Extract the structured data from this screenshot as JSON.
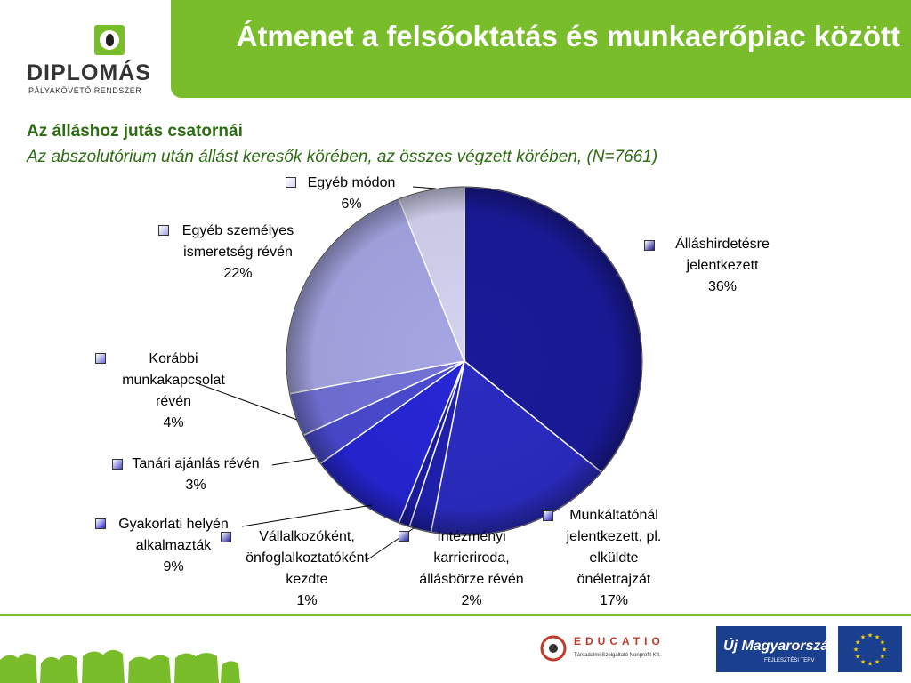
{
  "header": {
    "title": "Átmenet a felsőoktatás és munkaerőpiac között"
  },
  "logo": {
    "word": "DIPLOMÁS",
    "sub": "PÁLYAKÖVETŐ  RENDSZER"
  },
  "subtitle": {
    "line1": "Az álláshoz jutás csatornái",
    "line2": "Az abszolutórium után állást keresők körében, az összes végzett körében, (N=7661)"
  },
  "chart_data": {
    "type": "pie",
    "start_angle_deg": 0,
    "direction": "clockwise",
    "slices": [
      {
        "name": "Álláshirdetésre jelentkezett",
        "label_lines": [
          "Álláshirdetésre",
          "jelentkezett"
        ],
        "value": 36,
        "pct": "36%",
        "color": "#1a1a9a"
      },
      {
        "name": "Munkáltatónál jelentkezett, pl. elküldte önéletrajzát",
        "label_lines": [
          "Munkáltatónál",
          "jelentkezett, pl.",
          "elküldte",
          "önéletrajzát"
        ],
        "value": 17,
        "pct": "17%",
        "color": "#2b2bc2"
      },
      {
        "name": "Intézményi karrieriroda, állásbörze révén",
        "label_lines": [
          "Intézményi",
          "karrieriroda,",
          "állásbörze révén"
        ],
        "value": 2,
        "pct": "2%",
        "color": "#2020b0"
      },
      {
        "name": "Vállalkozóként, önfoglalkoztatóként kezdte",
        "label_lines": [
          "Vállalkozóként,",
          "önfoglalkoztatóként",
          "kezdte"
        ],
        "value": 1,
        "pct": "1%",
        "color": "#1c1ca6"
      },
      {
        "name": "Gyakorlati helyén alkalmazták",
        "label_lines": [
          "Gyakorlati helyén",
          "alkalmazták"
        ],
        "value": 9,
        "pct": "9%",
        "color": "#2626d6"
      },
      {
        "name": "Tanári ajánlás révén",
        "label_lines": [
          "Tanári ajánlás révén"
        ],
        "value": 3,
        "pct": "3%",
        "color": "#4a4ad0"
      },
      {
        "name": "Korábbi munkakapcsolat révén",
        "label_lines": [
          "Korábbi",
          "munkakapcsolat",
          "révén"
        ],
        "value": 4,
        "pct": "4%",
        "color": "#7272d8"
      },
      {
        "name": "Egyéb személyes ismeretség révén",
        "label_lines": [
          "Egyéb személyes",
          "ismeretség révén"
        ],
        "value": 22,
        "pct": "22%",
        "color": "#a6a6e4"
      },
      {
        "name": "Egyéb módon",
        "label_lines": [
          "Egyéb módon"
        ],
        "value": 6,
        "pct": "6%",
        "color": "#d4d4f2"
      }
    ]
  },
  "footer": {
    "educatio": "EDUCATIO",
    "educatio_sub": "Társadalmi Szolgáltató Nonprofit Kft.",
    "umft": "Új Magyarország",
    "umft_sub": "FEJLESZTÉSI TERV"
  }
}
